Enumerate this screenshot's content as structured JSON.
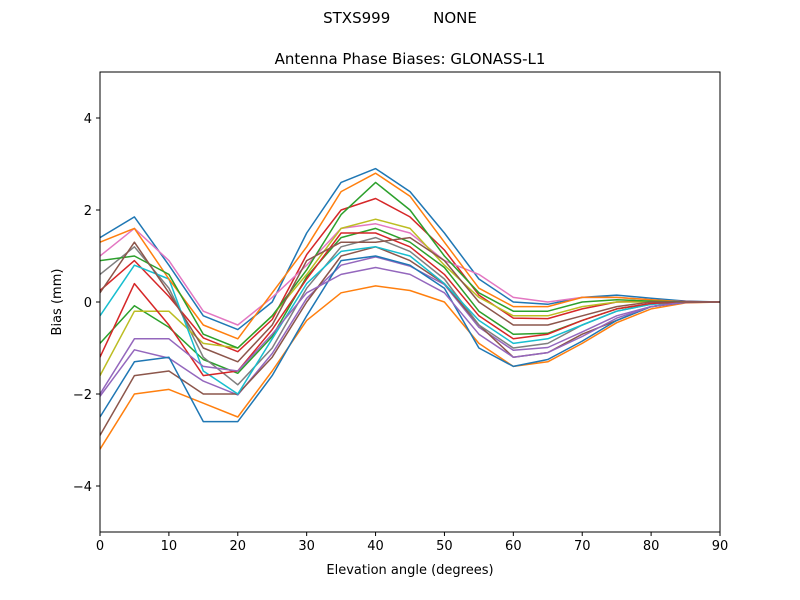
{
  "chart_data": {
    "type": "line",
    "suptitle": "STXS999         NONE",
    "title": "Antenna Phase Biases: GLONASS-L1",
    "xlabel": "Elevation angle (degrees)",
    "ylabel": "Bias (mm)",
    "xlim": [
      0,
      90
    ],
    "ylim": [
      -5,
      5
    ],
    "xticks": [
      "0",
      "10",
      "20",
      "30",
      "40",
      "50",
      "60",
      "70",
      "80",
      "90"
    ],
    "yticks": [
      "−4",
      "−2",
      "0",
      "2",
      "4"
    ],
    "grid": false,
    "colors": [
      "#1f77b4",
      "#ff7f0e",
      "#2ca02c",
      "#d62728",
      "#9467bd",
      "#8c564b",
      "#e377c2",
      "#7f7f7f",
      "#bcbd22",
      "#17becf"
    ],
    "x": [
      0,
      5,
      10,
      15,
      20,
      25,
      30,
      35,
      40,
      45,
      50,
      55,
      60,
      65,
      70,
      75,
      80,
      85,
      90
    ],
    "series": [
      {
        "values": [
          1.4,
          1.85,
          0.8,
          -0.3,
          -0.6,
          0,
          1.5,
          2.6,
          2.9,
          2.4,
          1.5,
          0.5,
          0,
          -0.05,
          0.1,
          0.15,
          0.08,
          0.02,
          0
        ]
      },
      {
        "values": [
          -3.2,
          -2.0,
          -1.9,
          -2.2,
          -2.5,
          -1.5,
          -0.4,
          0.2,
          0.35,
          0.25,
          0,
          -0.9,
          -1.4,
          -1.3,
          -0.9,
          -0.45,
          -0.15,
          -0.02,
          0
        ]
      },
      {
        "values": [
          -0.9,
          -0.08,
          -0.55,
          -1.25,
          -1.55,
          -0.75,
          0.55,
          1.4,
          1.6,
          1.3,
          0.75,
          -0.2,
          -0.7,
          -0.68,
          -0.4,
          -0.15,
          -0.04,
          0,
          0
        ]
      },
      {
        "values": [
          0.25,
          0.9,
          0.12,
          -0.78,
          -1.08,
          -0.38,
          1.03,
          2.0,
          2.25,
          1.85,
          1.13,
          0.15,
          -0.35,
          -0.36,
          -0.15,
          0,
          0.02,
          0.01,
          0
        ]
      },
      {
        "values": [
          -2.05,
          -1.04,
          -1.22,
          -1.72,
          -2.02,
          -1.12,
          0.08,
          0.8,
          0.98,
          0.78,
          0.38,
          -0.55,
          -1.05,
          -0.99,
          -0.65,
          -0.3,
          -0.1,
          -0.01,
          0
        ]
      },
      {
        "values": [
          -2.9,
          -1.6,
          -1.5,
          -2.0,
          -2.0,
          -1.2,
          0,
          1.0,
          1.2,
          0.9,
          0.4,
          -0.5,
          -1.2,
          -1.1,
          -0.7,
          -0.4,
          -0.1,
          0,
          0
        ]
      },
      {
        "values": [
          1.0,
          1.6,
          0.9,
          -0.2,
          -0.5,
          0.1,
          0.8,
          1.6,
          1.7,
          1.5,
          0.9,
          0.6,
          0.1,
          0,
          0.1,
          0.1,
          0.05,
          0,
          0
        ]
      },
      {
        "values": [
          0.6,
          1.2,
          0.3,
          -1.2,
          -1.8,
          -1.0,
          0.3,
          1.2,
          1.4,
          1.1,
          0.5,
          -0.5,
          -1.0,
          -0.9,
          -0.5,
          -0.2,
          -0.05,
          0,
          0
        ]
      },
      {
        "values": [
          -1.6,
          -0.2,
          -0.2,
          -0.9,
          -1.0,
          -0.3,
          0.6,
          1.6,
          1.8,
          1.6,
          0.8,
          0.1,
          -0.3,
          -0.3,
          -0.1,
          0,
          0,
          0,
          0
        ]
      },
      {
        "values": [
          -0.3,
          0.8,
          0.5,
          -1.5,
          -2.0,
          -0.8,
          0.4,
          1.1,
          1.2,
          1.0,
          0.4,
          -0.4,
          -0.9,
          -0.8,
          -0.5,
          -0.2,
          -0.05,
          0,
          0
        ]
      },
      {
        "values": [
          -2.5,
          -1.3,
          -1.2,
          -2.6,
          -2.6,
          -1.6,
          -0.3,
          0.9,
          1.0,
          0.8,
          0.3,
          -1.0,
          -1.4,
          -1.25,
          -0.85,
          -0.4,
          -0.1,
          0,
          0
        ]
      },
      {
        "values": [
          1.3,
          1.6,
          0.5,
          -0.5,
          -0.8,
          0.2,
          1.2,
          2.4,
          2.8,
          2.3,
          1.3,
          0.3,
          -0.1,
          -0.1,
          0.1,
          0.1,
          0.05,
          0,
          0
        ]
      },
      {
        "values": [
          0.9,
          1.0,
          0.6,
          -0.7,
          -1.0,
          -0.3,
          0.7,
          1.9,
          2.6,
          2.0,
          1.0,
          0.2,
          -0.2,
          -0.2,
          0,
          0.05,
          0.02,
          0,
          0
        ]
      },
      {
        "values": [
          -1.2,
          0.4,
          -0.5,
          -1.6,
          -1.5,
          -0.6,
          0.5,
          1.5,
          1.5,
          1.2,
          0.6,
          -0.3,
          -0.8,
          -0.7,
          -0.4,
          -0.15,
          -0.03,
          0,
          0
        ]
      },
      {
        "values": [
          -2.0,
          -0.8,
          -0.8,
          -1.4,
          -1.5,
          -0.7,
          0.2,
          0.6,
          0.75,
          0.6,
          0.2,
          -0.7,
          -1.2,
          -1.1,
          -0.75,
          -0.35,
          -0.1,
          0,
          0
        ]
      },
      {
        "values": [
          0.2,
          1.3,
          0.2,
          -1.0,
          -1.3,
          -0.5,
          0.9,
          1.3,
          1.3,
          1.4,
          0.9,
          0,
          -0.5,
          -0.5,
          -0.3,
          -0.1,
          0,
          0,
          0
        ]
      }
    ]
  }
}
